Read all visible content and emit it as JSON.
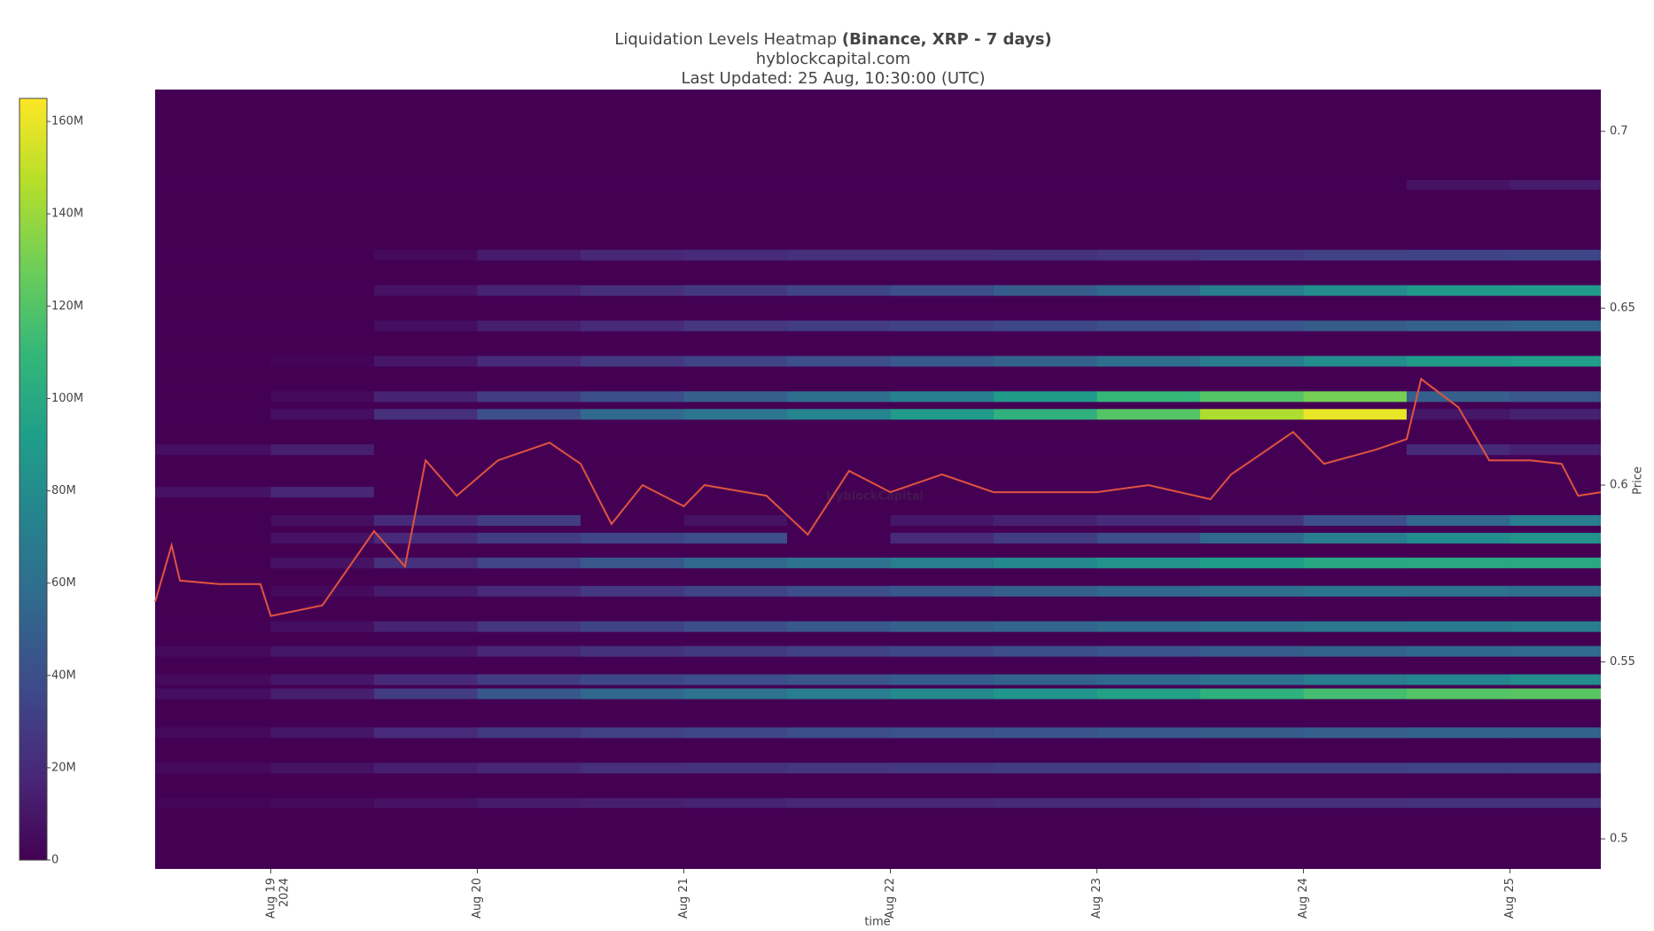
{
  "chart_data": {
    "type": "heatmap",
    "title": "Liquidation Levels Heatmap",
    "title_bold": "(Binance, XRP - 7 days)",
    "subtitle": "hyblockcapital.com",
    "updated": "Last Updated: 25 Aug, 10:30:00 (UTC)",
    "watermark": "HyblockCapital",
    "x_label": "time",
    "y_label": "Price",
    "xlim": [
      18.44,
      25.44
    ],
    "xticks": [
      {
        "value": 19,
        "label": "Aug 19\n2024"
      },
      {
        "value": 20,
        "label": "Aug 20"
      },
      {
        "value": 21,
        "label": "Aug 21"
      },
      {
        "value": 22,
        "label": "Aug 22"
      },
      {
        "value": 23,
        "label": "Aug 23"
      },
      {
        "value": 24,
        "label": "Aug 24"
      },
      {
        "value": 25,
        "label": "Aug 25"
      }
    ],
    "ylim": [
      0.4915,
      0.7118
    ],
    "yticks": [
      0.5,
      0.55,
      0.6,
      0.65,
      0.7
    ],
    "colorbar": {
      "zlim": [
        0,
        165
      ],
      "ticks": [
        {
          "value": 0,
          "label": "0"
        },
        {
          "value": 20,
          "label": "20M"
        },
        {
          "value": 40,
          "label": "40M"
        },
        {
          "value": 60,
          "label": "60M"
        },
        {
          "value": 80,
          "label": "80M"
        },
        {
          "value": 100,
          "label": "100M"
        },
        {
          "value": 120,
          "label": "120M"
        },
        {
          "value": 140,
          "label": "140M"
        },
        {
          "value": 160,
          "label": "160M"
        }
      ],
      "colorscale": [
        "#440154",
        "#482878",
        "#3e4989",
        "#31688e",
        "#26828e",
        "#1f9e89",
        "#35b779",
        "#6ece58",
        "#b5de2b",
        "#fde725"
      ]
    },
    "heatmap": {
      "x_edges": [
        18.44,
        19,
        19.5,
        20,
        20.5,
        21,
        21.5,
        22,
        22.5,
        23,
        23.5,
        24,
        24.5,
        25,
        25.44
      ],
      "rows": [
        {
          "y": 0.51,
          "values": [
            2,
            4,
            8,
            12,
            14,
            16,
            18,
            18,
            20,
            20,
            22,
            22,
            24,
            24
          ]
        },
        {
          "y": 0.52,
          "values": [
            4,
            8,
            14,
            18,
            22,
            24,
            26,
            28,
            30,
            30,
            32,
            32,
            34,
            34
          ]
        },
        {
          "y": 0.53,
          "values": [
            4,
            10,
            20,
            28,
            32,
            36,
            40,
            42,
            44,
            46,
            48,
            50,
            52,
            52
          ]
        },
        {
          "y": 0.541,
          "values": [
            6,
            14,
            30,
            45,
            55,
            62,
            70,
            78,
            86,
            94,
            105,
            115,
            120,
            122
          ]
        },
        {
          "y": 0.545,
          "values": [
            4,
            10,
            20,
            30,
            36,
            40,
            44,
            48,
            52,
            56,
            62,
            70,
            75,
            80
          ]
        },
        {
          "y": 0.553,
          "values": [
            4,
            10,
            10,
            18,
            24,
            28,
            32,
            36,
            40,
            44,
            48,
            52,
            56,
            58
          ]
        },
        {
          "y": 0.56,
          "values": [
            0,
            6,
            16,
            26,
            34,
            40,
            46,
            50,
            54,
            58,
            62,
            66,
            68,
            70
          ]
        },
        {
          "y": 0.57,
          "values": [
            0,
            4,
            12,
            20,
            28,
            34,
            40,
            45,
            50,
            55,
            60,
            65,
            62,
            60
          ]
        },
        {
          "y": 0.578,
          "values": [
            0,
            8,
            22,
            35,
            45,
            55,
            62,
            70,
            78,
            85,
            92,
            98,
            100,
            100
          ]
        },
        {
          "y": 0.585,
          "values": [
            0,
            8,
            20,
            30,
            35,
            40,
            0,
            20,
            30,
            40,
            55,
            70,
            80,
            85
          ]
        },
        {
          "y": 0.59,
          "values": [
            0,
            6,
            20,
            30,
            0,
            8,
            0,
            10,
            15,
            20,
            25,
            40,
            55,
            70
          ]
        },
        {
          "y": 0.598,
          "values": [
            8,
            18,
            0,
            0,
            0,
            0,
            0,
            0,
            0,
            0,
            0,
            0,
            0,
            0
          ]
        },
        {
          "y": 0.61,
          "values": [
            6,
            14,
            0,
            0,
            0,
            0,
            0,
            0,
            0,
            0,
            0,
            0,
            20,
            15
          ]
        },
        {
          "y": 0.62,
          "values": [
            0,
            6,
            22,
            40,
            55,
            65,
            75,
            90,
            105,
            120,
            145,
            160,
            10,
            15
          ]
        },
        {
          "y": 0.625,
          "values": [
            0,
            4,
            16,
            30,
            40,
            50,
            60,
            72,
            90,
            110,
            120,
            130,
            50,
            45
          ]
        },
        {
          "y": 0.635,
          "values": [
            0,
            2,
            10,
            20,
            28,
            34,
            40,
            46,
            52,
            60,
            70,
            80,
            90,
            92
          ]
        },
        {
          "y": 0.645,
          "values": [
            0,
            0,
            6,
            14,
            20,
            26,
            30,
            32,
            36,
            40,
            44,
            48,
            52,
            54
          ]
        },
        {
          "y": 0.655,
          "values": [
            0,
            0,
            8,
            16,
            22,
            28,
            34,
            40,
            48,
            56,
            70,
            80,
            88,
            90
          ]
        },
        {
          "y": 0.665,
          "values": [
            0,
            0,
            4,
            12,
            18,
            20,
            22,
            22,
            24,
            26,
            30,
            32,
            34,
            35
          ]
        },
        {
          "y": 0.685,
          "values": [
            0,
            0,
            0,
            0,
            0,
            0,
            0,
            0,
            0,
            0,
            0,
            0,
            8,
            12
          ]
        }
      ]
    },
    "price": {
      "color": "#e0533f",
      "x": [
        18.44,
        18.52,
        18.56,
        18.75,
        18.95,
        19.0,
        19.25,
        19.5,
        19.65,
        19.75,
        19.9,
        20.1,
        20.35,
        20.5,
        20.65,
        20.8,
        21.0,
        21.1,
        21.4,
        21.6,
        21.8,
        22.0,
        22.25,
        22.5,
        22.75,
        23.0,
        23.25,
        23.55,
        23.65,
        23.8,
        23.95,
        24.1,
        24.35,
        24.5,
        24.57,
        24.75,
        24.9,
        25.1,
        25.25,
        25.33,
        25.44
      ],
      "values": [
        0.567,
        0.583,
        0.573,
        0.572,
        0.572,
        0.563,
        0.566,
        0.587,
        0.577,
        0.607,
        0.597,
        0.607,
        0.612,
        0.606,
        0.589,
        0.6,
        0.594,
        0.6,
        0.597,
        0.586,
        0.604,
        0.598,
        0.603,
        0.598,
        0.598,
        0.598,
        0.6,
        0.596,
        0.603,
        0.609,
        0.615,
        0.606,
        0.61,
        0.613,
        0.63,
        0.622,
        0.607,
        0.607,
        0.606,
        0.597,
        0.598
      ]
    }
  }
}
